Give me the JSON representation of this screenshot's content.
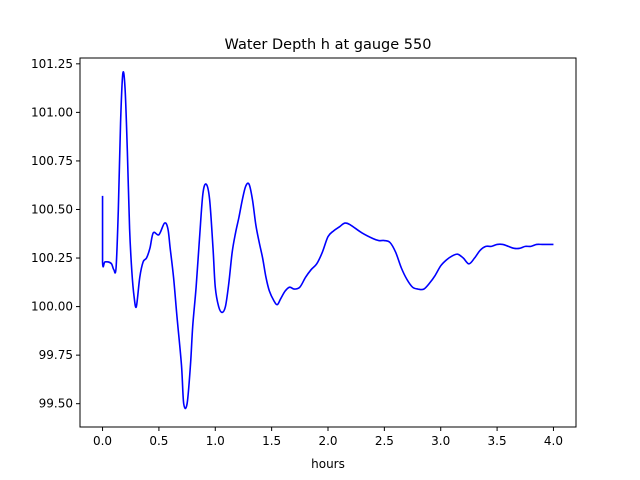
{
  "chart_data": {
    "type": "line",
    "title": "Water Depth h at gauge 550",
    "xlabel": "hours",
    "ylabel": "",
    "xlim": [
      -0.2,
      4.2
    ],
    "ylim": [
      99.38,
      101.28
    ],
    "xticks": [
      0.0,
      0.5,
      1.0,
      1.5,
      2.0,
      2.5,
      3.0,
      3.5,
      4.0
    ],
    "xtick_labels": [
      "0.0",
      "0.5",
      "1.0",
      "1.5",
      "2.0",
      "2.5",
      "3.0",
      "3.5",
      "4.0"
    ],
    "yticks": [
      99.5,
      99.75,
      100.0,
      100.25,
      100.5,
      100.75,
      101.0,
      101.25
    ],
    "ytick_labels": [
      "99.50",
      "99.75",
      "100.00",
      "100.25",
      "100.50",
      "100.75",
      "101.00",
      "101.25"
    ],
    "grid": false,
    "series": [
      {
        "color": "#0000ff",
        "x": [
          0.0,
          0.0,
          0.02,
          0.05,
          0.08,
          0.1,
          0.12,
          0.14,
          0.16,
          0.18,
          0.2,
          0.22,
          0.24,
          0.26,
          0.28,
          0.3,
          0.33,
          0.36,
          0.39,
          0.42,
          0.45,
          0.5,
          0.55,
          0.58,
          0.6,
          0.63,
          0.66,
          0.7,
          0.72,
          0.75,
          0.78,
          0.8,
          0.83,
          0.86,
          0.89,
          0.92,
          0.95,
          0.98,
          1.0,
          1.03,
          1.06,
          1.09,
          1.12,
          1.15,
          1.18,
          1.21,
          1.24,
          1.27,
          1.3,
          1.33,
          1.36,
          1.39,
          1.42,
          1.45,
          1.48,
          1.52,
          1.55,
          1.58,
          1.62,
          1.66,
          1.7,
          1.75,
          1.8,
          1.85,
          1.9,
          1.95,
          2.0,
          2.05,
          2.1,
          2.15,
          2.2,
          2.3,
          2.4,
          2.45,
          2.5,
          2.55,
          2.6,
          2.65,
          2.7,
          2.75,
          2.8,
          2.85,
          2.9,
          2.95,
          3.0,
          3.05,
          3.1,
          3.15,
          3.2,
          3.25,
          3.3,
          3.35,
          3.4,
          3.45,
          3.5,
          3.55,
          3.6,
          3.65,
          3.7,
          3.75,
          3.8,
          3.85,
          3.9,
          3.95,
          4.0
        ],
        "y": [
          100.57,
          100.23,
          100.23,
          100.23,
          100.22,
          100.19,
          100.2,
          100.5,
          100.95,
          101.2,
          101.12,
          100.8,
          100.4,
          100.18,
          100.05,
          100.0,
          100.15,
          100.23,
          100.25,
          100.3,
          100.38,
          100.37,
          100.43,
          100.4,
          100.3,
          100.15,
          99.95,
          99.7,
          99.5,
          99.5,
          99.7,
          99.9,
          100.1,
          100.35,
          100.58,
          100.63,
          100.55,
          100.3,
          100.1,
          100.0,
          99.97,
          100.0,
          100.12,
          100.28,
          100.38,
          100.46,
          100.55,
          100.62,
          100.63,
          100.55,
          100.42,
          100.33,
          100.25,
          100.15,
          100.08,
          100.03,
          100.01,
          100.04,
          100.08,
          100.1,
          100.09,
          100.1,
          100.15,
          100.19,
          100.22,
          100.28,
          100.36,
          100.39,
          100.41,
          100.43,
          100.42,
          100.38,
          100.35,
          100.34,
          100.34,
          100.33,
          100.28,
          100.2,
          100.14,
          100.1,
          100.09,
          100.09,
          100.12,
          100.16,
          100.21,
          100.24,
          100.26,
          100.27,
          100.25,
          100.22,
          100.25,
          100.29,
          100.31,
          100.31,
          100.32,
          100.32,
          100.31,
          100.3,
          100.3,
          100.31,
          100.31,
          100.32,
          100.32,
          100.32,
          100.32
        ]
      }
    ]
  }
}
